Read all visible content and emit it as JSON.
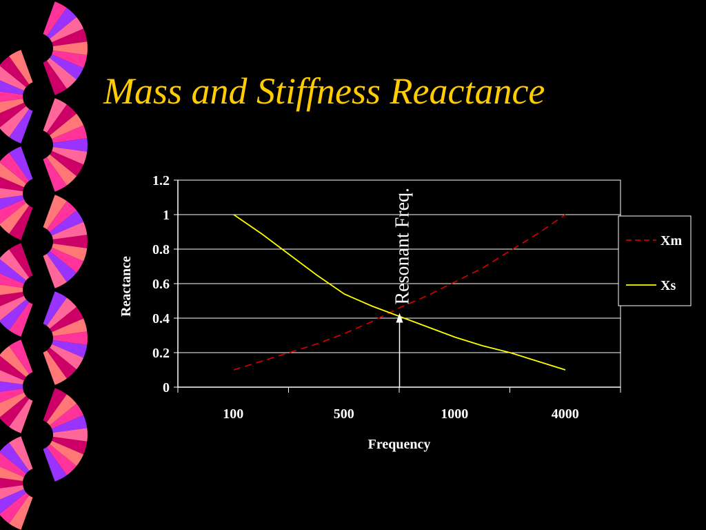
{
  "slide": {
    "title": "Mass and Stiffness Reactance",
    "background": "#000000",
    "title_color": "#FFCC00"
  },
  "decoration": {
    "icon": "decorative-fan-border",
    "colors": [
      "#FF3399",
      "#9933FF",
      "#FF6699",
      "#CC0066",
      "#FF7777"
    ]
  },
  "chart_data": {
    "type": "line",
    "categories": [
      "100",
      "500",
      "1000",
      "4000"
    ],
    "xlabel": "Frequency",
    "ylabel": "Reactance",
    "ylim": [
      0,
      1.2
    ],
    "yticks": [
      "0",
      "0.2",
      "0.4",
      "0.6",
      "0.8",
      "1",
      "1.2"
    ],
    "grid": true,
    "legend_position": "right",
    "x": [
      0,
      0.25,
      0.5,
      0.75,
      1,
      1.25,
      1.5,
      1.75,
      2,
      2.25,
      2.5,
      2.75,
      3
    ],
    "series": [
      {
        "name": "Xm",
        "color": "#CC0000",
        "style": "dashed",
        "values": [
          0.1,
          0.15,
          0.2,
          0.25,
          0.31,
          0.38,
          0.46,
          0.53,
          0.61,
          0.69,
          0.79,
          0.89,
          1.0
        ]
      },
      {
        "name": "Xs",
        "color": "#FFFF00",
        "style": "solid",
        "values": [
          1.0,
          0.89,
          0.77,
          0.65,
          0.54,
          0.47,
          0.41,
          0.35,
          0.29,
          0.24,
          0.2,
          0.15,
          0.1
        ]
      }
    ],
    "annotation": {
      "text": "Resonant Freq.",
      "x": 1.5,
      "y": 0.43
    }
  }
}
